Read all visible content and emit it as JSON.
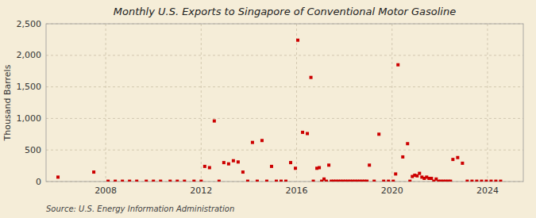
{
  "chart_data": {
    "type": "scatter",
    "title": "Monthly U.S. Exports to Singapore of Conventional Motor Gasoline",
    "y_label": "Thousand Barrels",
    "annotations": [
      "Source: U.S. Energy Information Administration"
    ],
    "color": "#cc0000",
    "marker": "square",
    "grid": true,
    "xlim": [
      2005.5,
      2025.5
    ],
    "ylim": [
      0,
      2500
    ],
    "xticks": [
      2008,
      2012,
      2016,
      2020,
      2024
    ],
    "yticks": [
      0,
      500,
      {
        "value": 1000,
        "label": "1,000"
      },
      {
        "value": 1500,
        "label": "1,500"
      },
      {
        "value": 2000,
        "label": "2,000"
      },
      {
        "value": 2500,
        "label": "2,500"
      }
    ],
    "x": [
      2006.0,
      2007.5,
      2008.1,
      2008.4,
      2008.7,
      2009.0,
      2009.3,
      2009.7,
      2010.0,
      2010.3,
      2010.7,
      2011.0,
      2011.3,
      2011.7,
      2012.0,
      2012.15,
      2012.35,
      2012.55,
      2012.75,
      2012.95,
      2013.15,
      2013.35,
      2013.55,
      2013.75,
      2013.95,
      2014.15,
      2014.35,
      2014.55,
      2014.75,
      2014.95,
      2015.15,
      2015.35,
      2015.55,
      2015.75,
      2015.95,
      2016.05,
      2016.25,
      2016.45,
      2016.6,
      2016.7,
      2016.85,
      2016.95,
      2017.05,
      2017.15,
      2017.25,
      2017.35,
      2017.45,
      2017.55,
      2017.65,
      2017.75,
      2017.85,
      2017.95,
      2018.05,
      2018.15,
      2018.25,
      2018.35,
      2018.45,
      2018.55,
      2018.65,
      2018.75,
      2018.85,
      2018.95,
      2019.05,
      2019.25,
      2019.45,
      2019.65,
      2019.85,
      2020.05,
      2020.15,
      2020.25,
      2020.45,
      2020.65,
      2020.75,
      2020.85,
      2020.95,
      2021.05,
      2021.15,
      2021.25,
      2021.35,
      2021.45,
      2021.55,
      2021.65,
      2021.75,
      2021.85,
      2021.95,
      2022.05,
      2022.15,
      2022.25,
      2022.35,
      2022.45,
      2022.55,
      2022.75,
      2022.95,
      2023.15,
      2023.35,
      2023.55,
      2023.75,
      2023.95,
      2024.15,
      2024.35,
      2024.55
    ],
    "values": [
      70,
      150,
      5,
      5,
      5,
      5,
      5,
      5,
      5,
      5,
      5,
      5,
      5,
      5,
      5,
      240,
      220,
      960,
      5,
      300,
      280,
      330,
      310,
      150,
      5,
      620,
      5,
      650,
      5,
      240,
      5,
      5,
      5,
      300,
      210,
      2240,
      780,
      760,
      1650,
      5,
      210,
      220,
      5,
      40,
      5,
      260,
      5,
      5,
      5,
      5,
      5,
      5,
      5,
      5,
      5,
      5,
      5,
      5,
      5,
      5,
      5,
      5,
      260,
      5,
      750,
      5,
      5,
      5,
      120,
      1850,
      390,
      600,
      5,
      80,
      100,
      90,
      130,
      70,
      50,
      70,
      50,
      50,
      5,
      40,
      5,
      5,
      5,
      5,
      5,
      5,
      350,
      380,
      290,
      5,
      5,
      5,
      5,
      5,
      5,
      5,
      5
    ]
  }
}
